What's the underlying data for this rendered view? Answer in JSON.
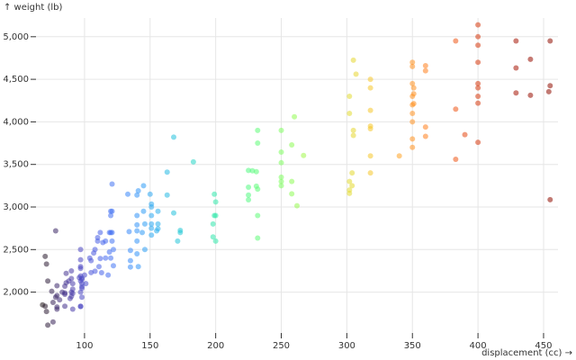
{
  "chart_data": {
    "type": "scatter",
    "x_label": "displacement (cc) →",
    "y_label": "↑ weight (lb)",
    "color_scheme": "turbo",
    "grid": true,
    "xlim": [
      63,
      461
    ],
    "ylim": [
      1520,
      5220
    ],
    "xticks": [
      100,
      150,
      200,
      250,
      300,
      350,
      400,
      450
    ],
    "yticks": [
      {
        "value": 2000,
        "label": "2,000"
      },
      {
        "value": 2500,
        "label": "2,500"
      },
      {
        "value": 3000,
        "label": "3,000"
      },
      {
        "value": 3500,
        "label": "3,500"
      },
      {
        "value": 4000,
        "label": "4,000"
      },
      {
        "value": 4500,
        "label": "4,500"
      },
      {
        "value": 5000,
        "label": "5,000"
      }
    ],
    "x": [
      68,
      70,
      71,
      72,
      70,
      71,
      72,
      76,
      79,
      78,
      85,
      85,
      85,
      86,
      88,
      89,
      90,
      90,
      90,
      91,
      91,
      91,
      97,
      97,
      97,
      97,
      98,
      98,
      98,
      96,
      97,
      97,
      97,
      98,
      83,
      81,
      79,
      79,
      78,
      76,
      75,
      79,
      85,
      86,
      90,
      91,
      97,
      98,
      97,
      98,
      105,
      105,
      107,
      108,
      108,
      110,
      112,
      113,
      116,
      119,
      120,
      120,
      120,
      121,
      121,
      121,
      121,
      122,
      114,
      116,
      118,
      101,
      104,
      100,
      110,
      111,
      112,
      119,
      120,
      122,
      133,
      134,
      135,
      135,
      135,
      140,
      140,
      140,
      140,
      140,
      141,
      144,
      145,
      146,
      151,
      151,
      151,
      151,
      151,
      155,
      156,
      156,
      163,
      168,
      171,
      173,
      183,
      168,
      145,
      150,
      156,
      163,
      173,
      140,
      141,
      146,
      151,
      198,
      198,
      199,
      200,
      200,
      200,
      199,
      225,
      225,
      225,
      225,
      231,
      231,
      232,
      232,
      232,
      232,
      232,
      228,
      250,
      250,
      250,
      250,
      250,
      250,
      258,
      258,
      258,
      262,
      260,
      267,
      302,
      302,
      302,
      302,
      302,
      304,
      304,
      305,
      305,
      305,
      307,
      318,
      318,
      318,
      318,
      318,
      318,
      318,
      340,
      350,
      350,
      350,
      350,
      350,
      350,
      350,
      350,
      350,
      351,
      351,
      351,
      360,
      360,
      360,
      360,
      383,
      383,
      383,
      390,
      400,
      400,
      400,
      400,
      400,
      400,
      400,
      400,
      400,
      429,
      429,
      429,
      440,
      440,
      454,
      455,
      455,
      455
    ],
    "y": [
      1850,
      1835,
      1773,
      1613,
      2420,
      2330,
      2130,
      1650,
      1800,
      2720,
      1990,
      1975,
      2070,
      2110,
      2130,
      1925,
      2160,
      1950,
      2000,
      1800,
      1985,
      2035,
      2130,
      1835,
      2300,
      2190,
      2045,
      2150,
      1940,
      2170,
      2380,
      2000,
      1830,
      2100,
      2000,
      1910,
      1960,
      2075,
      1940,
      1880,
      2010,
      1825,
      1835,
      2220,
      2250,
      2100,
      2500,
      2164,
      2279,
      2065,
      2230,
      2370,
      2460,
      2245,
      2500,
      2640,
      2395,
      2228,
      2600,
      2472,
      2950,
      2700,
      2900,
      2600,
      2950,
      3270,
      2700,
      2310,
      2582,
      2400,
      2200,
      2100,
      2400,
      2200,
      2600,
      2300,
      2700,
      2700,
      2400,
      2500,
      3150,
      2711,
      2370,
      2295,
      2490,
      2600,
      2790,
      2720,
      3140,
      2900,
      3190,
      2700,
      2950,
      2800,
      3035,
      2670,
      2750,
      2900,
      3000,
      2720,
      2950,
      2800,
      3410,
      2930,
      2600,
      2700,
      3530,
      3820,
      3250,
      3150,
      2745,
      3140,
      2725,
      2450,
      2300,
      2500,
      2800,
      2648,
      2800,
      2900,
      3060,
      2900,
      2600,
      3150,
      3233,
      3430,
      3085,
      3140,
      3415,
      3245,
      2635,
      2900,
      3750,
      3900,
      3210,
      3425,
      3645,
      3520,
      3250,
      3300,
      3900,
      3350,
      3155,
      3730,
      3300,
      3015,
      4060,
      3605,
      3200,
      3300,
      3160,
      4100,
      4300,
      3250,
      3400,
      3840,
      3900,
      4725,
      4560,
      3400,
      3950,
      4135,
      4500,
      3920,
      4400,
      3600,
      3600,
      3700,
      3800,
      4100,
      4200,
      4300,
      4450,
      4650,
      4700,
      4000,
      4400,
      4330,
      4215,
      4600,
      4660,
      3940,
      3830,
      3560,
      4150,
      4950,
      3850,
      4400,
      4700,
      4900,
      5140,
      5000,
      4450,
      3760,
      4220,
      4300,
      4950,
      4633,
      4340,
      4735,
      4312,
      4354,
      4951,
      4425,
      3086
    ]
  }
}
